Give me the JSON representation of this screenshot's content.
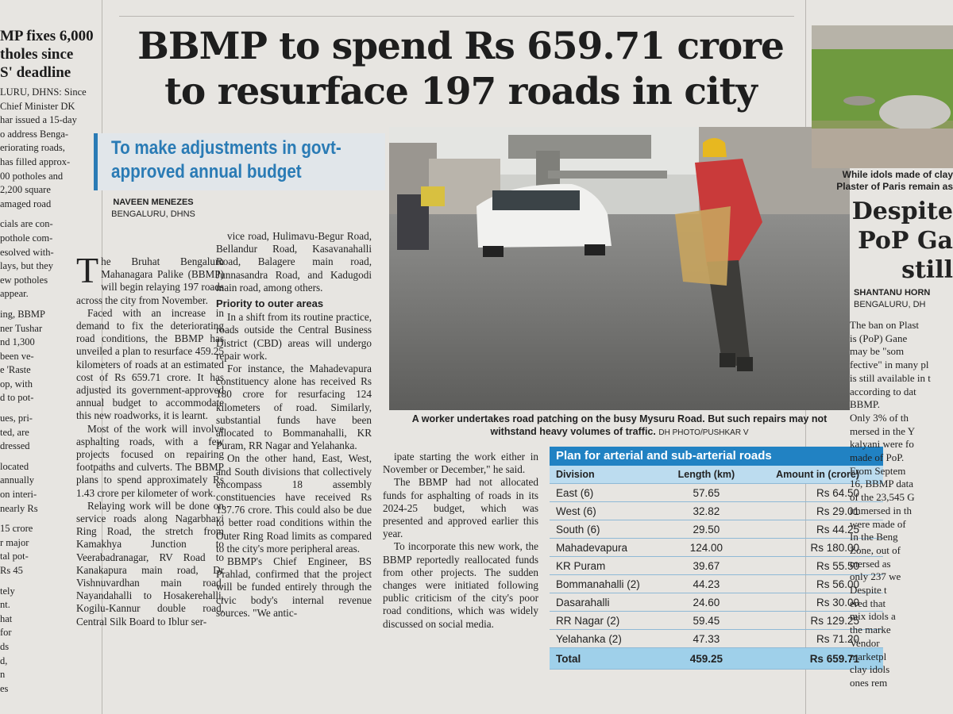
{
  "left_column": {
    "headline_lines": [
      "MP fixes 6,000",
      "tholes since",
      "S' deadline"
    ],
    "paragraphs": [
      [
        "LURU, DHNS: Since",
        "Chief Minister DK",
        "har issued a 15-day",
        "o address Benga-",
        "eriorating roads,",
        "has filled approx-",
        "00 potholes and",
        "2,200 square",
        "amaged road"
      ],
      [
        "cials are con-",
        "pothole com-",
        "esolved with-",
        "lays, but they",
        "ew potholes",
        "appear."
      ],
      [
        "ing, BBMP",
        "ner Tushar",
        "nd 1,300",
        "been ve-",
        "e 'Raste",
        "op, with",
        "d to pot-"
      ],
      [
        "ues, pri-",
        "ted, are",
        "dressed"
      ],
      [
        "located",
        "annually",
        "on interi-",
        "nearly Rs"
      ],
      [
        "15 crore",
        "r major",
        "tal pot-",
        "Rs 45"
      ],
      [
        "tely",
        "nt.",
        "hat",
        "for",
        "ds",
        "d,",
        "n",
        "es"
      ]
    ]
  },
  "article": {
    "headline_lines": [
      "BBMP to spend Rs 659.71 crore",
      "to resurface 197 roads in city"
    ],
    "subheadline_lines": [
      "To make adjustments in govt-",
      "approved annual budget"
    ],
    "byline": {
      "author": "NAVEEN MENEZES",
      "dateline": "BENGALURU, DHNS"
    },
    "columns": [
      [
        {
          "text": "The Bruhat Bengaluru Mahanagara Palike (BBMP) will begin relaying 197 roads across the city from November."
        },
        {
          "text": "Faced with an increase in demand to fix the deteriorating road conditions, the BBMP has unveiled a plan to resurface 459.25 kilometers of roads at an estimated cost of Rs 659.71 crore. It has adjusted its government-approved annual budget to accommodate this new roadworks, it is learnt."
        },
        {
          "text": "Most of the work will involve asphalting roads, with a few projects focused on repairing footpaths and culverts. The BBMP plans to spend approximately Rs 1.43 crore per kilometer of work."
        },
        {
          "text": "Relaying work will be done on service roads along Nagarbhavi Ring Road, the stretch from Kamakhya Junction to Veerabadranagar, RV Road to Kanakapura main road, Dr Vishnuvardhan main road, Nayandahalli to Hosakerehalli, Kogilu-Kannur double road, Central Silk Board to Iblur ser-"
        }
      ],
      [
        {
          "text": "vice road, Hulimavu-Begur Road, Bellandur Road, Kasavanahalli Road, Balagere main road, Junnasandra Road, and Kadugodi main road, among others."
        },
        {
          "subhead": "Priority to outer areas"
        },
        {
          "text": "In a shift from its routine practice, roads outside the Central Business District (CBD) areas will undergo repair work."
        },
        {
          "text": "For instance, the Mahadevapura constituency alone has received Rs 180 crore for resurfacing 124 kilometers of road. Similarly, substantial funds have been allocated to Bommanahalli, KR Puram, RR Nagar and Yelahanka."
        },
        {
          "text": "On the other hand, East, West, and South divisions that collectively encompass 18 assembly constituencies have received Rs 137.76 crore. This could also be due to better road conditions within the Outer Ring Road limits as compared to the city's more peripheral areas."
        },
        {
          "text": "BBMP's Chief Engineer, BS Prahlad, confirmed that the project will be funded entirely through the civic body's internal revenue sources. \"We antic-"
        }
      ],
      [
        {
          "text": "ipate starting the work either in November or December,\" he said."
        },
        {
          "text": "The BBMP had not allocated funds for asphalting of roads in its 2024-25 budget, which was presented and approved earlier this year."
        },
        {
          "text": "To incorporate this new work, the BBMP reportedly reallocated funds from other projects. The sudden changes were initiated following public criticism of the city's poor road conditions, which was widely discussed on social media."
        }
      ]
    ],
    "photo": {
      "caption": "A worker undertakes road patching on the busy Mysuru Road. But such repairs may not withstand heavy volumes of traffic.",
      "credit": "DH PHOTO/PUSHKAR V"
    },
    "table": {
      "title": "Plan for arterial and sub-arterial roads",
      "headers": [
        "Division",
        "Length (km)",
        "Amount in (crore)"
      ],
      "rows": [
        [
          "East (6)",
          "57.65",
          "Rs 64.50"
        ],
        [
          "West (6)",
          "32.82",
          "Rs 29.01"
        ],
        [
          "South (6)",
          "29.50",
          "Rs 44.25"
        ],
        [
          "Mahadevapura",
          "124.00",
          "Rs 180.00"
        ],
        [
          "KR Puram",
          "39.67",
          "Rs 55.50"
        ],
        [
          "Bommanahalli (2)",
          "44.23",
          "Rs 56.00"
        ],
        [
          "Dasarahalli",
          "24.60",
          "Rs 30.00"
        ],
        [
          "RR Nagar (2)",
          "59.45",
          "Rs 129.25"
        ],
        [
          "Yelahanka (2)",
          "47.33",
          "Rs 71.20"
        ]
      ],
      "total": [
        "Total",
        "459.25",
        "Rs 659.71"
      ]
    }
  },
  "right_column": {
    "photo_caption_lines": [
      "While idols made of clay",
      "Plaster of Paris remain as"
    ],
    "headline_lines": [
      "Despite",
      "PoP Ga",
      "still"
    ],
    "byline_lines": [
      "SHANTANU HORN",
      "BENGALURU, DH"
    ],
    "body_lines": [
      "The ban on Plast",
      "is (PoP) Gane",
      "may be \"som",
      "fective\" in many pl",
      "is still available in t",
      "according to dat",
      "BBMP.",
      "Only 3% of th",
      "mersed in the Y",
      "kalyani were fo",
      "made of PoP.",
      "From Septem",
      "16, BBMP data",
      "of the 23,545 G",
      "immersed in th",
      "were made of",
      "In the Beng",
      "Zone, out of",
      "mersed as",
      "only 237 we",
      "Despite t",
      "ered that",
      "mix idols a",
      "the marke",
      "Vendor",
      "marketpl",
      "clay idols",
      "ones rem"
    ]
  }
}
